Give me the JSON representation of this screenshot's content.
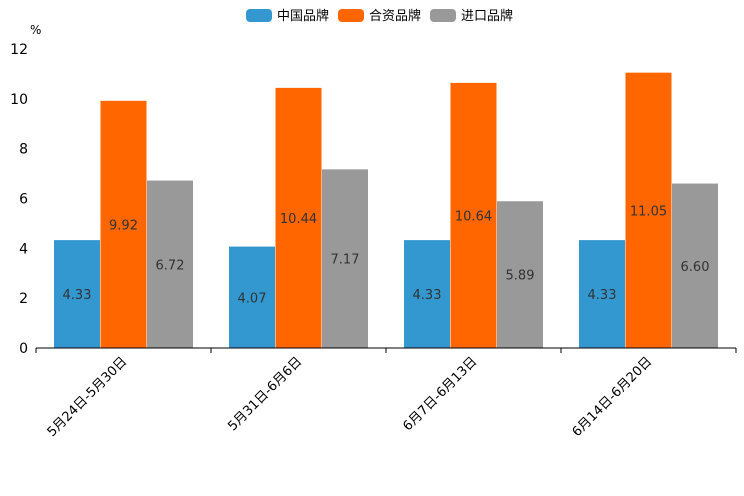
{
  "chart_data": {
    "type": "bar",
    "ylabel": "%",
    "ylim": [
      0,
      12
    ],
    "yticks": [
      0,
      2,
      4,
      6,
      8,
      10,
      12
    ],
    "legend_position": "top-center",
    "categories": [
      "5月24日-5月30日",
      "5月31日-6月6日",
      "6月7日-6月13日",
      "6月14日-6月20日"
    ],
    "series": [
      {
        "name": "中国品牌",
        "color": "#3398d0",
        "values": [
          4.33,
          4.07,
          4.33,
          4.33
        ],
        "labels": [
          "4.33",
          "4.07",
          "4.33",
          "4.33"
        ]
      },
      {
        "name": "合资品牌",
        "color": "#ff6600",
        "values": [
          9.92,
          10.44,
          10.64,
          11.05
        ],
        "labels": [
          "9.92",
          "10.44",
          "10.64",
          "11.05"
        ]
      },
      {
        "name": "进口品牌",
        "color": "#999999",
        "values": [
          6.72,
          7.17,
          5.89,
          6.6
        ],
        "labels": [
          "6.72",
          "7.17",
          "5.89",
          "6.60"
        ]
      }
    ]
  }
}
